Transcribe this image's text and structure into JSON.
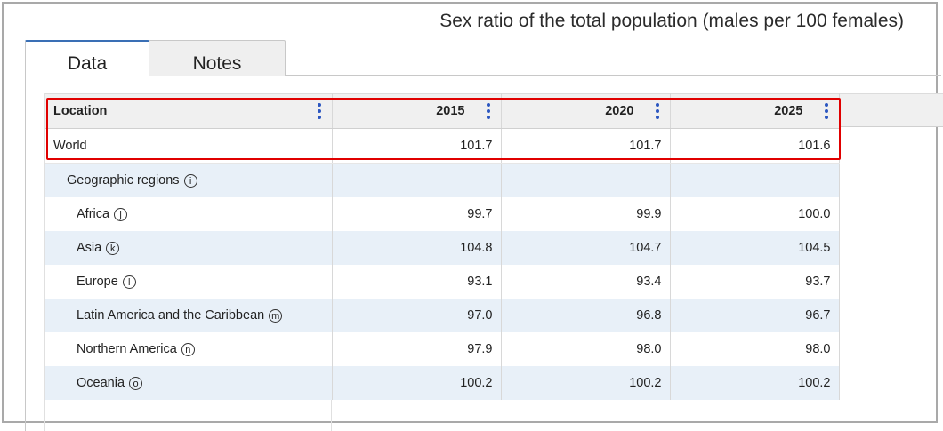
{
  "title": "Sex ratio of the total population (males per 100 females)",
  "tabs": [
    {
      "label": "Data",
      "active": true
    },
    {
      "label": "Notes",
      "active": false
    }
  ],
  "table": {
    "columns": [
      "Location",
      "2015",
      "2020",
      "2025"
    ],
    "rows": [
      {
        "location": "World",
        "note": "",
        "values": [
          "101.7",
          "101.7",
          "101.6"
        ]
      },
      {
        "location": "Geographic regions",
        "note": "i",
        "values": [
          "",
          "",
          ""
        ]
      },
      {
        "location": "Africa",
        "note": "j",
        "values": [
          "99.7",
          "99.9",
          "100.0"
        ]
      },
      {
        "location": "Asia",
        "note": "k",
        "values": [
          "104.8",
          "104.7",
          "104.5"
        ]
      },
      {
        "location": "Europe",
        "note": "l",
        "values": [
          "93.1",
          "93.4",
          "93.7"
        ]
      },
      {
        "location": "Latin America and the Caribbean",
        "note": "m",
        "values": [
          "97.0",
          "96.8",
          "96.7"
        ]
      },
      {
        "location": "Northern America",
        "note": "n",
        "values": [
          "97.9",
          "98.0",
          "98.0"
        ]
      },
      {
        "location": "Oceania",
        "note": "o",
        "values": [
          "100.2",
          "100.2",
          "100.2"
        ]
      }
    ]
  },
  "colors": {
    "highlight": "#e00000",
    "accent": "#2b56c0",
    "row_alt": "#e8f0f8"
  }
}
